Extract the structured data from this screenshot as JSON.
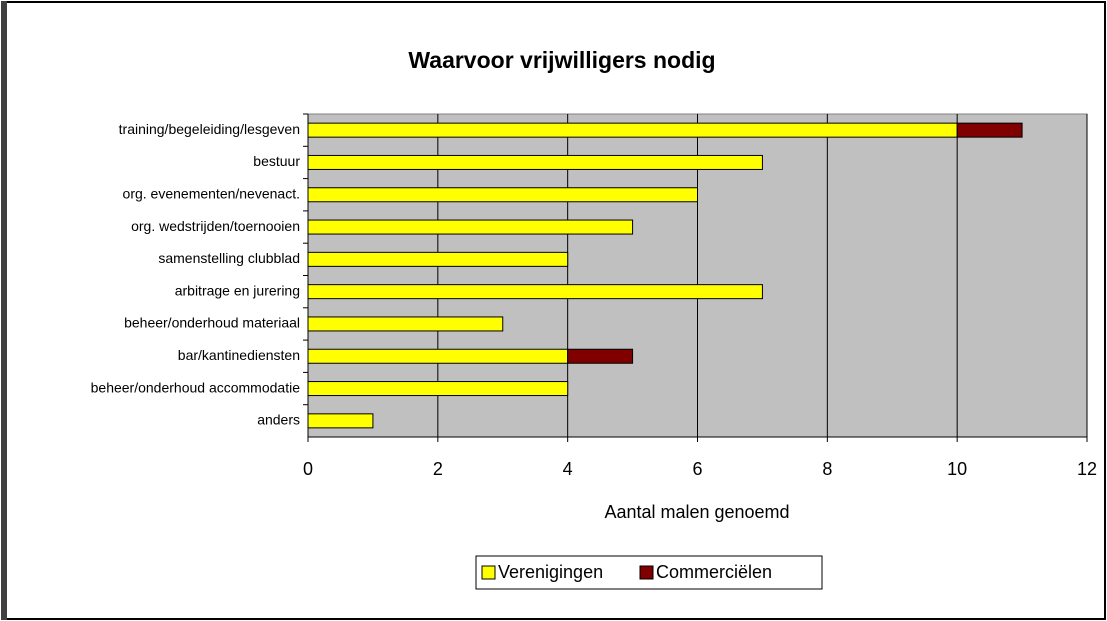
{
  "chart_data": {
    "type": "stacked_barh",
    "title": "Waarvoor vrijwilligers nodig",
    "categories": [
      "training/begeleiding/lesgeven",
      "bestuur",
      "org. evenementen/nevenact.",
      "org. wedstrijden/toernooien",
      "samenstelling clubblad",
      "arbitrage en jurering",
      "beheer/onderhoud materiaal",
      "bar/kantinediensten",
      "beheer/onderhoud accommodatie",
      "anders"
    ],
    "series": [
      {
        "name": "Verenigingen",
        "color": "#ffff00",
        "values": [
          10,
          7,
          6,
          5,
          4,
          7,
          3,
          4,
          4,
          1
        ]
      },
      {
        "name": "Commerciëlen",
        "color": "#800000",
        "values": [
          1,
          0,
          0,
          0,
          0,
          0,
          0,
          1,
          0,
          0
        ]
      }
    ],
    "xlabel": "Aantal malen genoemd",
    "xlim": [
      0,
      12
    ],
    "xticks": [
      0,
      2,
      4,
      6,
      8,
      10,
      12
    ],
    "grid": true,
    "legend": "bottom",
    "plot_background": "#c0c0c0"
  }
}
